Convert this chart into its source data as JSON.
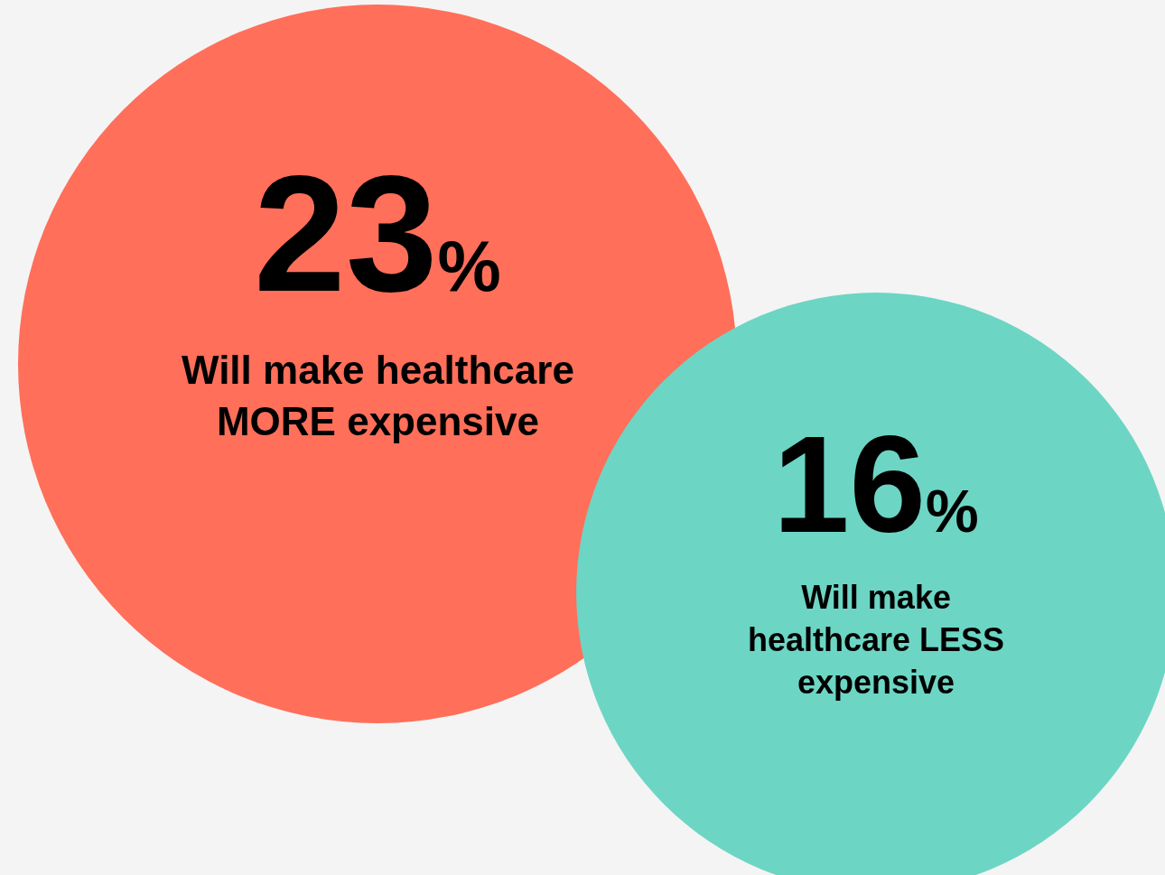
{
  "chart_data": {
    "type": "other",
    "categories": [
      "Will make healthcare MORE expensive",
      "Will make healthcare LESS expensive"
    ],
    "values": [
      23,
      16
    ],
    "value_labels": [
      "23%",
      "16%"
    ],
    "colors": [
      "#ff6f5a",
      "#6dd5c4"
    ]
  }
}
